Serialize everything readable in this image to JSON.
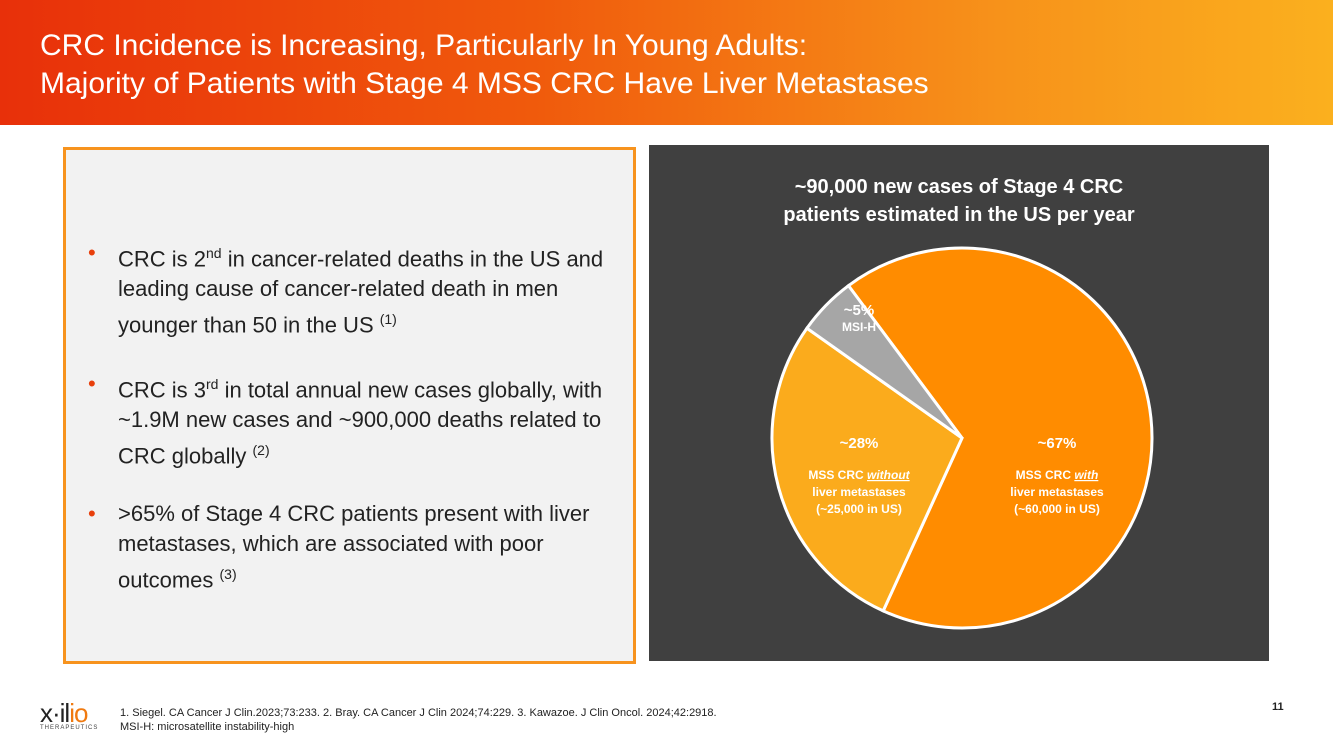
{
  "header": {
    "title_line1": "CRC Incidence is Increasing, Particularly In Young Adults:",
    "title_line2": "Majority of Patients with Stage 4 MSS CRC Have Liver Metastases"
  },
  "bullets": [
    {
      "pre": "CRC is 2",
      "sup": "nd",
      "post": " in cancer-related deaths in the US and leading cause of cancer-related death in men younger than 50 in the US ",
      "ref": "(1)"
    },
    {
      "pre": "CRC is 3",
      "sup": "rd",
      "post": " in total annual new cases globally, with ~1.9M new cases and ~900,000 deaths related to CRC globally ",
      "ref": "(2)"
    },
    {
      "pre": ">65% of Stage 4 CRC patients present with liver metastases, which are associated with poor outcomes ",
      "sup": "",
      "post": "",
      "ref": "(3)"
    }
  ],
  "chart_data": {
    "type": "pie",
    "title_line1": "~90,000 new cases of Stage 4 CRC",
    "title_line2": "patients estimated in the US per year",
    "slices": [
      {
        "value": 67,
        "pct_label": "~67%",
        "label_pre": "MSS CRC ",
        "label_emph": "with",
        "line2": "liver metastases",
        "line3": "(~60,000 in US)",
        "color": "#ff8c00"
      },
      {
        "value": 28,
        "pct_label": "~28%",
        "label_pre": "MSS CRC ",
        "label_emph": "without",
        "line2": "liver metastases",
        "line3": "(~25,000 in US)",
        "color": "#fbab1c"
      },
      {
        "value": 5,
        "pct_label": "~5%",
        "label_pre": "MSI-H",
        "label_emph": "",
        "line2": "",
        "line3": "",
        "color": "#a6a6a6"
      }
    ]
  },
  "footer": {
    "refs": "1. Siegel. CA Cancer J Clin.2023;73:233.  2. Bray. CA Cancer J Clin 2024;74:229.  3. Kawazoe. J Clin Oncol. 2024;42:2918.",
    "abbrev": "MSI-H: microsatellite instability-high",
    "page": "11",
    "logo": "xilio",
    "logo_sub": "THERAPEUTICS"
  }
}
